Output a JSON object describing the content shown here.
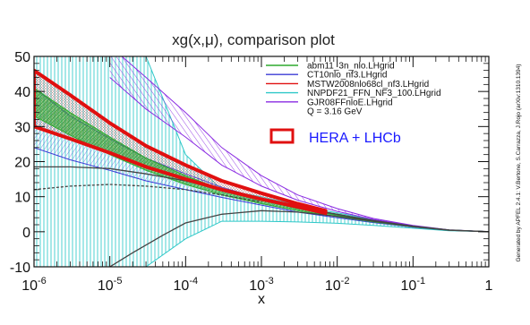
{
  "chart_data": {
    "type": "line",
    "title": "xg(x,μ), comparison plot",
    "xlabel": "x",
    "ylabel": "",
    "xscale": "log",
    "xlim": [
      1e-06,
      1
    ],
    "ylim": [
      -10,
      50
    ],
    "grid": false,
    "legend_position": "top-right",
    "x_ticks": [
      {
        "v": 1e-06,
        "base": "10",
        "exp": "-6"
      },
      {
        "v": 1e-05,
        "base": "10",
        "exp": "-5"
      },
      {
        "v": 0.0001,
        "base": "10",
        "exp": "-4"
      },
      {
        "v": 0.001,
        "base": "10",
        "exp": "-3"
      },
      {
        "v": 0.01,
        "base": "10",
        "exp": "-2"
      },
      {
        "v": 0.1,
        "base": "10",
        "exp": "-1"
      },
      {
        "v": 1,
        "base": "1",
        "exp": ""
      }
    ],
    "y_ticks": [
      {
        "v": -10,
        "label": "-10"
      },
      {
        "v": 0,
        "label": "0"
      },
      {
        "v": 10,
        "label": "10"
      },
      {
        "v": 20,
        "label": "20"
      },
      {
        "v": 30,
        "label": "30"
      },
      {
        "v": 40,
        "label": "40"
      },
      {
        "v": 50,
        "label": "50"
      }
    ],
    "scale_note": "Q = 3.16 GeV",
    "side_text": "Generated by APFEL 2.4.1: V.Bertone, S.Carrazza, J.Rojo (arXiv:1310.1394)",
    "series": [
      {
        "name": "abm11_3n_nlo.LHgrid",
        "color": "#2eaa2e",
        "x": [
          1e-06,
          3e-06,
          1e-05,
          3e-05,
          0.0001,
          0.0003,
          0.001,
          0.003,
          0.01,
          0.03,
          0.1,
          0.3,
          1
        ],
        "lower": [
          33,
          27.5,
          22,
          17.5,
          13.5,
          10.5,
          8,
          6,
          4.3,
          2.8,
          1.4,
          0.4,
          0
        ],
        "upper": [
          41,
          34,
          27,
          21,
          16,
          12,
          9,
          6.6,
          4.7,
          3.1,
          1.6,
          0.5,
          0
        ]
      },
      {
        "name": "CT10nlo_nf3.LHgrid",
        "color": "#3b3bd6",
        "x": [
          1e-06,
          3e-06,
          1e-05,
          3e-05,
          0.0001,
          0.0003,
          0.001,
          0.003,
          0.01,
          0.03,
          0.1,
          0.3,
          1
        ],
        "lower": [
          24,
          20.5,
          17.5,
          14.5,
          12,
          9.8,
          7.6,
          5.6,
          4,
          2.6,
          1.3,
          0.4,
          0
        ],
        "upper": [
          41,
          33,
          26.5,
          21,
          16.5,
          12.7,
          9.4,
          6.8,
          4.8,
          3.1,
          1.6,
          0.5,
          0
        ]
      },
      {
        "name": "MSTW2008nlo68cl_nf3.LHgrid",
        "color": "#e01010",
        "x": [
          1e-06,
          3e-06,
          1e-05,
          3e-05,
          0.0001,
          0.0003,
          0.001,
          0.003,
          0.007
        ],
        "lower": [
          30,
          26.5,
          22.5,
          18.5,
          15,
          12,
          9.3,
          7.1,
          5.3
        ],
        "upper": [
          46,
          39,
          31,
          24.5,
          19,
          14.5,
          11,
          8,
          6
        ]
      },
      {
        "name": "NNPDF21_FFN_NF3_100.LHgrid",
        "color": "#2ec8c8",
        "x": [
          1e-06,
          3e-06,
          1e-05,
          3e-05,
          0.0001,
          0.0003,
          0.001,
          0.003,
          0.01,
          0.03,
          0.1,
          0.3,
          1
        ],
        "lower": [
          -10,
          -10,
          -10,
          -10,
          -2,
          3,
          3,
          2.8,
          2.4,
          1.8,
          1,
          0.3,
          0
        ],
        "upper": [
          50,
          50,
          50,
          50,
          22,
          12,
          10,
          7.6,
          5.4,
          3.4,
          1.7,
          0.5,
          0
        ]
      },
      {
        "name": "GJR08FFnloE.LHgrid",
        "color": "#8a2be2",
        "x": [
          1e-05,
          3e-05,
          0.0001,
          0.0003,
          0.001,
          0.003,
          0.01,
          0.03,
          0.1,
          0.3,
          1
        ],
        "lower": [
          44,
          35,
          27,
          19,
          13,
          9,
          5.8,
          3.5,
          1.7,
          0.5,
          0
        ],
        "upper": [
          53,
          44,
          34,
          24,
          16,
          10.5,
          6.6,
          3.8,
          1.8,
          0.55,
          0
        ]
      }
    ],
    "central_curves": [
      {
        "color": "#444444",
        "x": [
          1e-06,
          3e-06,
          1e-05,
          3e-05,
          0.0001,
          0.0003,
          0.001,
          0.003,
          0.01,
          0.03,
          0.1,
          0.3,
          1
        ],
        "y": [
          18.5,
          18.5,
          18,
          16.5,
          14.5,
          12,
          9.3,
          7,
          5,
          3.2,
          1.6,
          0.5,
          0
        ]
      },
      {
        "color": "#444444",
        "x": [
          1e-05,
          2e-05,
          5e-05,
          0.0001,
          0.0003,
          0.001,
          0.003,
          0.01,
          0.03,
          0.1,
          0.3,
          1
        ],
        "y": [
          -10,
          -6,
          -1,
          2.5,
          5,
          6,
          5.6,
          4.4,
          3,
          1.5,
          0.45,
          0
        ]
      },
      {
        "color": "#444444",
        "x": [
          1e-06,
          3e-06,
          1e-05,
          3e-05,
          0.0001,
          0.0003,
          0.001
        ],
        "y": [
          12,
          13,
          13.5,
          13,
          12,
          10.5,
          8.5
        ]
      }
    ],
    "annotation": {
      "label": "HERA + LHCb",
      "color": "#e01010",
      "region": {
        "x": [
          1e-06,
          3e-06,
          1e-05,
          3e-05,
          0.0001,
          0.0003,
          0.001,
          0.003,
          0.007
        ],
        "lower": [
          30,
          26.5,
          22.5,
          18.5,
          15,
          12,
          9.3,
          7.1,
          5.3
        ],
        "upper": [
          46,
          39,
          31,
          24.5,
          19,
          14.5,
          11,
          8,
          6
        ]
      }
    }
  }
}
